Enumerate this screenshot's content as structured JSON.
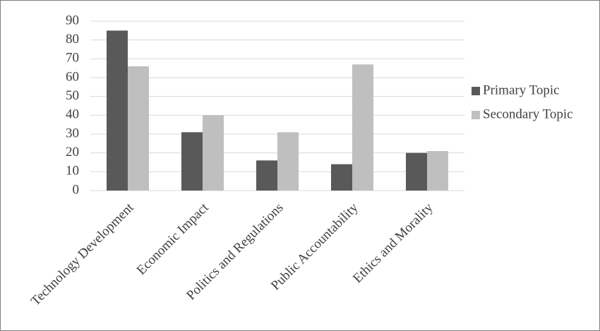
{
  "chart_data": {
    "type": "bar",
    "categories": [
      "Technology Development",
      "Economic Impact",
      "Politics and Regulations",
      "Public Accountability",
      "Ethics and Morality"
    ],
    "series": [
      {
        "name": "Primary Topic",
        "color": "#595959",
        "values": [
          85,
          31,
          16,
          14,
          20
        ]
      },
      {
        "name": "Secondary Topic",
        "color": "#bfbfbf",
        "values": [
          66,
          40,
          31,
          67,
          21
        ]
      }
    ],
    "ylim": [
      0,
      90
    ],
    "yticks": [
      0,
      10,
      20,
      30,
      40,
      50,
      60,
      70,
      80,
      90
    ],
    "grid": true,
    "legend": "right"
  }
}
